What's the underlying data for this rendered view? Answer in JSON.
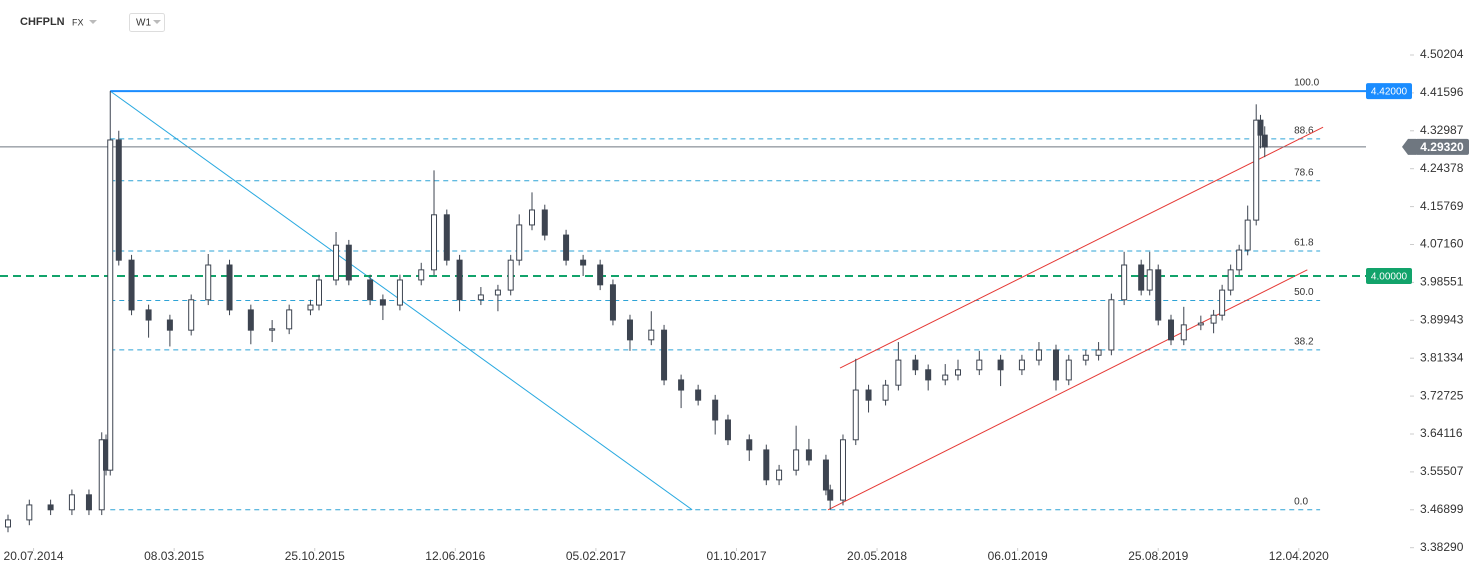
{
  "header": {
    "symbol": "CHFPLN",
    "market": "FX",
    "interval": "W1"
  },
  "chart_data": {
    "type": "candlestick",
    "x": [
      0,
      5,
      10,
      15,
      19,
      22,
      23,
      24,
      26,
      29,
      33,
      38,
      43,
      47,
      52,
      57,
      62,
      66,
      71,
      73,
      77,
      80,
      85,
      88,
      92,
      97,
      100,
      103,
      106,
      111,
      115,
      118,
      120,
      123,
      126,
      131,
      135,
      139,
      142,
      146,
      151,
      154,
      158,
      162,
      166,
      169,
      174,
      178,
      181,
      185,
      188,
      192,
      193,
      196,
      199,
      202,
      206,
      209,
      213,
      216,
      220,
      223,
      228,
      233,
      238,
      242,
      246,
      249,
      253,
      256,
      259,
      262,
      266,
      268,
      270,
      273,
      276,
      280,
      283,
      285,
      287,
      289,
      291,
      293,
      294,
      295
    ],
    "open": [
      3.43,
      3.446,
      3.48,
      3.469,
      3.503,
      3.469,
      3.628,
      3.559,
      4.309,
      4.036,
      3.923,
      3.9,
      3.877,
      3.946,
      4.025,
      3.923,
      3.877,
      3.88,
      3.923,
      3.934,
      3.991,
      4.07,
      3.991,
      3.946,
      3.934,
      3.991,
      4.014,
      4.139,
      4.036,
      3.946,
      3.957,
      3.968,
      4.036,
      4.116,
      4.15,
      4.093,
      4.036,
      4.025,
      3.98,
      3.9,
      3.855,
      3.877,
      3.764,
      3.741,
      3.718,
      3.673,
      3.628,
      3.605,
      3.537,
      3.559,
      3.605,
      3.582,
      3.514,
      3.491,
      3.628,
      3.741,
      3.718,
      3.752,
      3.809,
      3.787,
      3.764,
      3.775,
      3.787,
      3.809,
      3.787,
      3.809,
      3.832,
      3.764,
      3.809,
      3.82,
      3.832,
      3.946,
      4.025,
      3.968,
      4.014,
      3.9,
      3.855,
      3.889,
      3.893,
      3.911,
      3.968,
      4.014,
      4.059,
      4.127,
      4.354,
      4.32
    ],
    "high": [
      3.458,
      3.492,
      3.492,
      3.515,
      3.515,
      3.645,
      3.64,
      4.42,
      4.33,
      4.048,
      3.935,
      3.912,
      3.958,
      4.05,
      4.037,
      3.935,
      3.9,
      3.935,
      3.946,
      4.003,
      4.1,
      4.082,
      4.003,
      3.958,
      4.003,
      4.03,
      4.24,
      4.151,
      4.048,
      3.975,
      3.98,
      4.048,
      4.14,
      4.19,
      4.162,
      4.105,
      4.048,
      4.037,
      3.992,
      3.912,
      3.92,
      3.889,
      3.776,
      3.753,
      3.73,
      3.685,
      3.64,
      3.617,
      3.571,
      3.66,
      3.63,
      3.594,
      3.526,
      3.64,
      3.812,
      3.753,
      3.764,
      3.85,
      3.821,
      3.799,
      3.8,
      3.81,
      3.83,
      3.821,
      3.821,
      3.85,
      3.844,
      3.821,
      3.832,
      3.85,
      3.96,
      4.055,
      4.037,
      4.055,
      4.026,
      3.912,
      3.93,
      3.91,
      3.923,
      3.98,
      4.026,
      4.071,
      4.16,
      4.39,
      4.366,
      4.34
    ],
    "low": [
      3.418,
      3.434,
      3.457,
      3.457,
      3.457,
      3.457,
      3.547,
      3.547,
      4.024,
      3.911,
      3.86,
      3.84,
      3.865,
      3.934,
      3.911,
      3.845,
      3.85,
      3.868,
      3.911,
      3.922,
      3.979,
      3.979,
      3.934,
      3.9,
      3.922,
      3.979,
      4.002,
      4.024,
      3.92,
      3.934,
      3.92,
      3.956,
      4.024,
      4.104,
      4.081,
      4.024,
      4,
      3.968,
      3.888,
      3.83,
      3.843,
      3.752,
      3.7,
      3.706,
      3.64,
      3.616,
      3.58,
      3.525,
      3.525,
      3.547,
      3.57,
      3.502,
      3.469,
      3.479,
      3.616,
      3.69,
      3.706,
      3.74,
      3.775,
      3.74,
      3.752,
      3.763,
      3.775,
      3.75,
      3.775,
      3.797,
      3.74,
      3.752,
      3.797,
      3.808,
      3.82,
      3.934,
      3.956,
      3.956,
      3.888,
      3.843,
      3.843,
      3.877,
      3.87,
      3.899,
      3.956,
      4.002,
      4.047,
      4.115,
      4.29,
      4.27
    ],
    "close": [
      3.446,
      3.48,
      3.469,
      3.503,
      3.469,
      3.628,
      3.559,
      4.309,
      4.036,
      3.923,
      3.9,
      3.877,
      3.946,
      4.025,
      3.923,
      3.877,
      3.88,
      3.923,
      3.934,
      3.991,
      4.07,
      3.991,
      3.946,
      3.934,
      3.991,
      4.014,
      4.139,
      4.036,
      3.946,
      3.957,
      3.968,
      4.036,
      4.116,
      4.15,
      4.093,
      4.036,
      4.025,
      3.98,
      3.9,
      3.855,
      3.877,
      3.764,
      3.741,
      3.718,
      3.673,
      3.628,
      3.605,
      3.537,
      3.559,
      3.605,
      3.582,
      3.514,
      3.491,
      3.628,
      3.741,
      3.718,
      3.752,
      3.809,
      3.787,
      3.764,
      3.775,
      3.787,
      3.809,
      3.787,
      3.809,
      3.832,
      3.764,
      3.809,
      3.82,
      3.832,
      3.946,
      4.025,
      3.968,
      4.014,
      3.9,
      3.855,
      3.889,
      3.893,
      3.911,
      3.968,
      4.014,
      4.059,
      4.127,
      4.354,
      4.32,
      4.293
    ],
    "up_color": "#ffffff",
    "down_color": "#3d4450",
    "xlim": [
      -1.88,
      329.1
    ],
    "xticks": [
      {
        "value": 6,
        "label": "20.07.2014"
      },
      {
        "value": 39,
        "label": "08.03.2015"
      },
      {
        "value": 72,
        "label": "25.10.2015"
      },
      {
        "value": 105,
        "label": "12.06.2016"
      },
      {
        "value": 138,
        "label": "05.02.2017"
      },
      {
        "value": 171,
        "label": "01.10.2017"
      },
      {
        "value": 204,
        "label": "20.05.2018"
      },
      {
        "value": 237,
        "label": "06.01.2019"
      },
      {
        "value": 270,
        "label": "25.08.2019"
      },
      {
        "value": 303,
        "label": "12.04.2020"
      }
    ],
    "ylim": [
      3.3822,
      4.5588
    ],
    "yticks": [
      4.50204,
      4.41596,
      4.32987,
      4.24378,
      4.15769,
      {
        "value": 4.0716,
        "label": "4.07160"
      },
      3.98551,
      3.89943,
      3.81334,
      3.72725,
      3.64116,
      3.55507,
      3.46899,
      {
        "value": 3.3829,
        "label": "3.38290"
      }
    ],
    "price_lines": [
      {
        "value": 4.42,
        "label": "4.42000",
        "color": "#1a8cff",
        "style": "solid"
      },
      {
        "value": 4.2932,
        "label": "4.29320",
        "color": "#6f7780",
        "style": "solid"
      },
      {
        "value": 4,
        "label": "4.00000",
        "color": "#12a36b",
        "style": "dashed"
      }
    ],
    "fibonacci": {
      "x": [
        24,
        308
      ],
      "y": [
        4.42,
        3.469
      ],
      "color": "#2ea3d6",
      "levels": [
        {
          "value": 100,
          "label": "100.0"
        },
        88.6,
        78.6,
        61.8,
        {
          "value": 50,
          "label": "50.0"
        },
        38.2,
        {
          "value": 0,
          "label": "0.0"
        }
      ]
    },
    "trendlines": [
      {
        "x": [
          24,
          160.6
        ],
        "y": [
          4.42,
          3.469
        ],
        "color": "#29a9e0"
      },
      {
        "x": [
          192.5,
          305
        ],
        "y": [
          3.469,
          4.014
        ],
        "color": "#e53935"
      },
      {
        "x": [
          195.3,
          308.7
        ],
        "y": [
          3.791,
          4.338
        ],
        "color": "#e53935"
      }
    ]
  }
}
